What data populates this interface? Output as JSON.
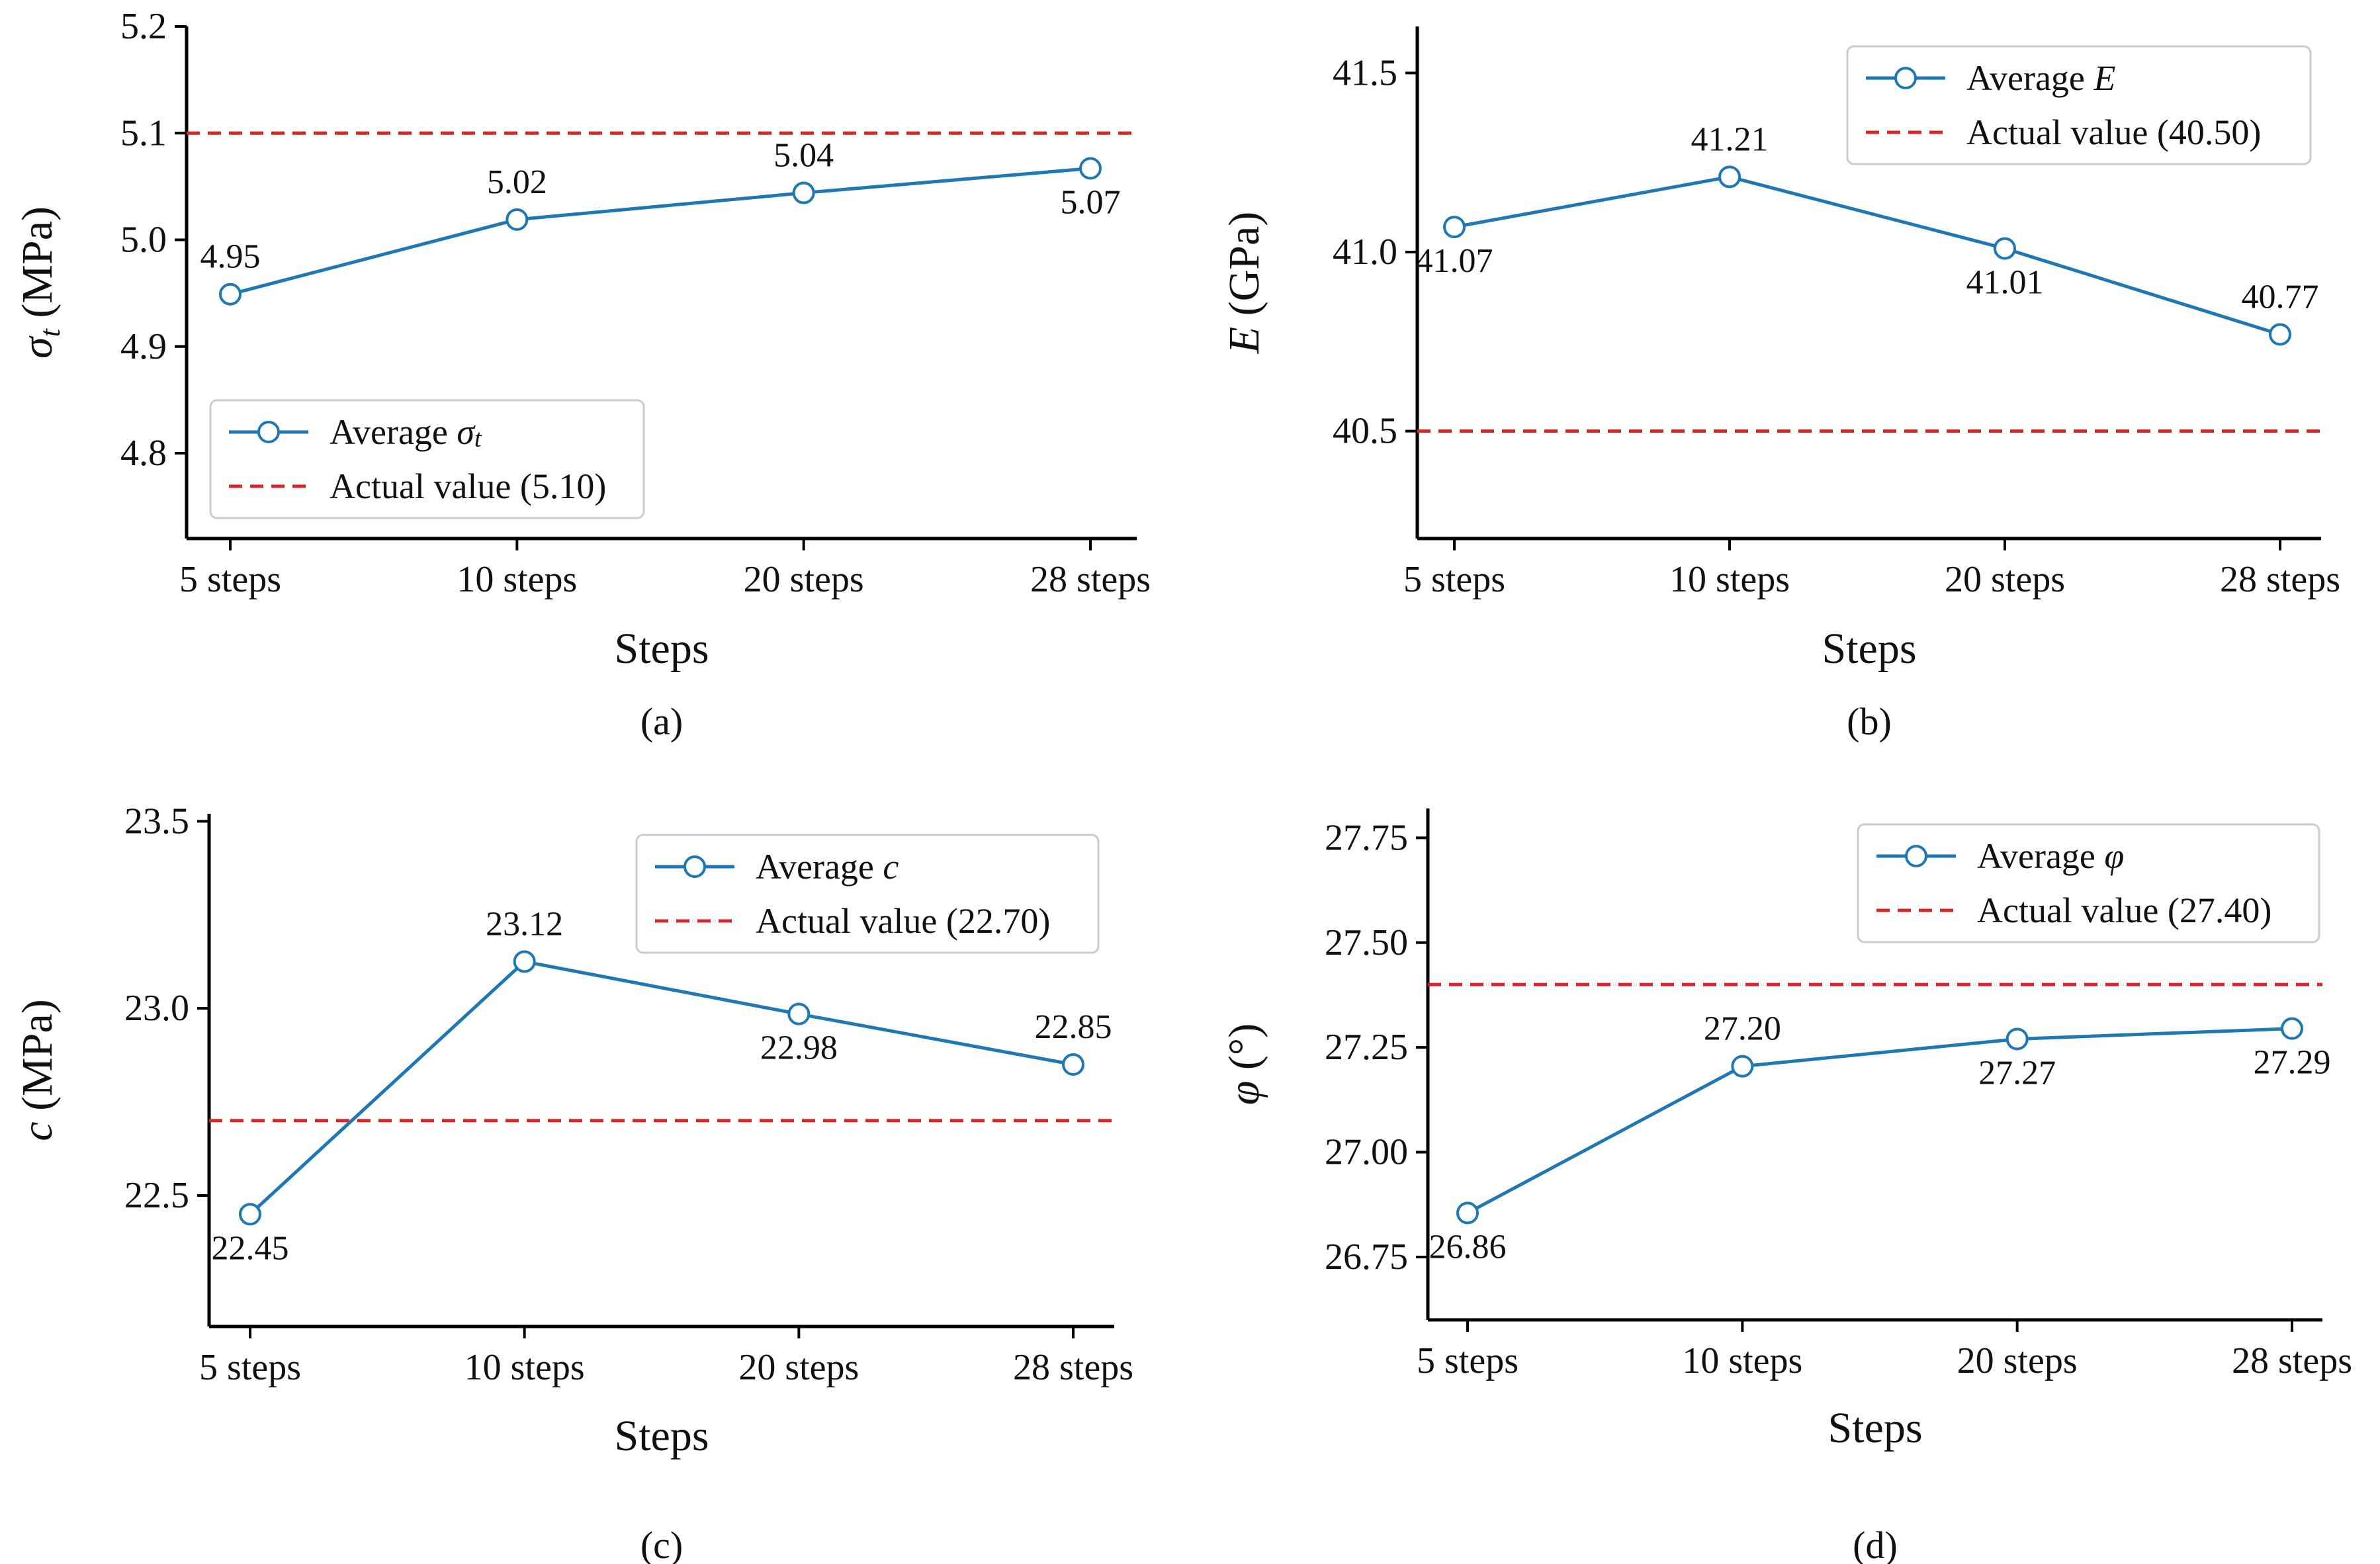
{
  "colors": {
    "series": "#1f77b4",
    "reference": "#d62728",
    "axis": "#000000",
    "legend_border": "#cccccc"
  },
  "chart_data": [
    {
      "id": "a",
      "type": "line",
      "panel_label": "(a)",
      "xlabel": "Steps",
      "ylabel": "σt (MPa)",
      "ylabel_parts": {
        "symbol": "σ",
        "subscript": "t",
        "unit": " (MPa)"
      },
      "categories": [
        "5 steps",
        "10 steps",
        "20 steps",
        "28 steps"
      ],
      "values": [
        4.95,
        5.02,
        5.04,
        5.07
      ],
      "point_values": [
        4.949,
        5.019,
        5.044,
        5.067
      ],
      "data_labels": [
        "4.95",
        "5.02",
        "5.04",
        "5.07"
      ],
      "label_side": [
        "above",
        "above",
        "above",
        "below"
      ],
      "reference_value": 5.1,
      "ylim": [
        4.72,
        5.2
      ],
      "yticks": [
        4.8,
        4.9,
        5.0,
        5.1,
        5.2
      ],
      "ytick_labels": [
        "4.8",
        "4.9",
        "5.0",
        "5.1",
        "5.2"
      ],
      "legend_position": "bottom-left",
      "legend": [
        {
          "kind": "series",
          "text": "Average ",
          "symbol": "σ",
          "subscript": "t"
        },
        {
          "kind": "reference",
          "text": "Actual value (5.10)"
        }
      ]
    },
    {
      "id": "b",
      "type": "line",
      "panel_label": "(b)",
      "xlabel": "Steps",
      "ylabel": "E (GPa)",
      "ylabel_parts": {
        "symbol": "E",
        "subscript": "",
        "unit": " (GPa)"
      },
      "categories": [
        "5 steps",
        "10 steps",
        "20 steps",
        "28 steps"
      ],
      "values": [
        41.07,
        41.21,
        41.01,
        40.77
      ],
      "point_values": [
        41.07,
        41.21,
        41.01,
        40.77
      ],
      "data_labels": [
        "41.07",
        "41.21",
        "41.01",
        "40.77"
      ],
      "label_side": [
        "below",
        "above",
        "below",
        "above"
      ],
      "reference_value": 40.5,
      "ylim": [
        40.2,
        41.63
      ],
      "yticks": [
        40.5,
        41.0,
        41.5
      ],
      "ytick_labels": [
        "40.5",
        "41.0",
        "41.5"
      ],
      "legend_position": "top-right",
      "legend": [
        {
          "kind": "series",
          "text": "Average ",
          "symbol": "E",
          "subscript": ""
        },
        {
          "kind": "reference",
          "text": "Actual value (40.50)"
        }
      ]
    },
    {
      "id": "c",
      "type": "line",
      "panel_label": "(c)",
      "xlabel": "Steps",
      "ylabel": "c (MPa)",
      "ylabel_parts": {
        "symbol": "c",
        "subscript": "",
        "unit": " (MPa)"
      },
      "categories": [
        "5 steps",
        "10 steps",
        "20 steps",
        "28 steps"
      ],
      "values": [
        22.45,
        23.12,
        22.98,
        22.85
      ],
      "point_values": [
        22.45,
        23.125,
        22.985,
        22.85
      ],
      "data_labels": [
        "22.45",
        "23.12",
        "22.98",
        "22.85"
      ],
      "label_side": [
        "below",
        "above",
        "below",
        "above"
      ],
      "reference_value": 22.7,
      "ylim": [
        22.15,
        23.52
      ],
      "yticks": [
        22.5,
        23.0,
        23.5
      ],
      "ytick_labels": [
        "22.5",
        "23.0",
        "23.5"
      ],
      "legend_position": "top-right",
      "legend": [
        {
          "kind": "series",
          "text": "Average ",
          "symbol": "c",
          "subscript": ""
        },
        {
          "kind": "reference",
          "text": "Actual value (22.70)"
        }
      ]
    },
    {
      "id": "d",
      "type": "line",
      "panel_label": "(d)",
      "xlabel": "Steps",
      "ylabel": "φ (°)",
      "ylabel_parts": {
        "symbol": "φ",
        "subscript": "",
        "unit": " (°)"
      },
      "categories": [
        "5 steps",
        "10 steps",
        "20 steps",
        "28 steps"
      ],
      "values": [
        26.86,
        27.2,
        27.27,
        27.29
      ],
      "point_values": [
        26.855,
        27.205,
        27.27,
        27.295
      ],
      "data_labels": [
        "26.86",
        "27.20",
        "27.27",
        "27.29"
      ],
      "label_side": [
        "below",
        "above",
        "below",
        "below"
      ],
      "reference_value": 27.4,
      "ylim": [
        26.6,
        27.82
      ],
      "yticks": [
        26.75,
        27.0,
        27.25,
        27.5,
        27.75
      ],
      "ytick_labels": [
        "26.75",
        "27.00",
        "27.25",
        "27.50",
        "27.75"
      ],
      "legend_position": "top-right",
      "legend": [
        {
          "kind": "series",
          "text": "Average  ",
          "symbol": "φ",
          "subscript": ""
        },
        {
          "kind": "reference",
          "text": "Actual value (27.40)"
        }
      ]
    }
  ]
}
